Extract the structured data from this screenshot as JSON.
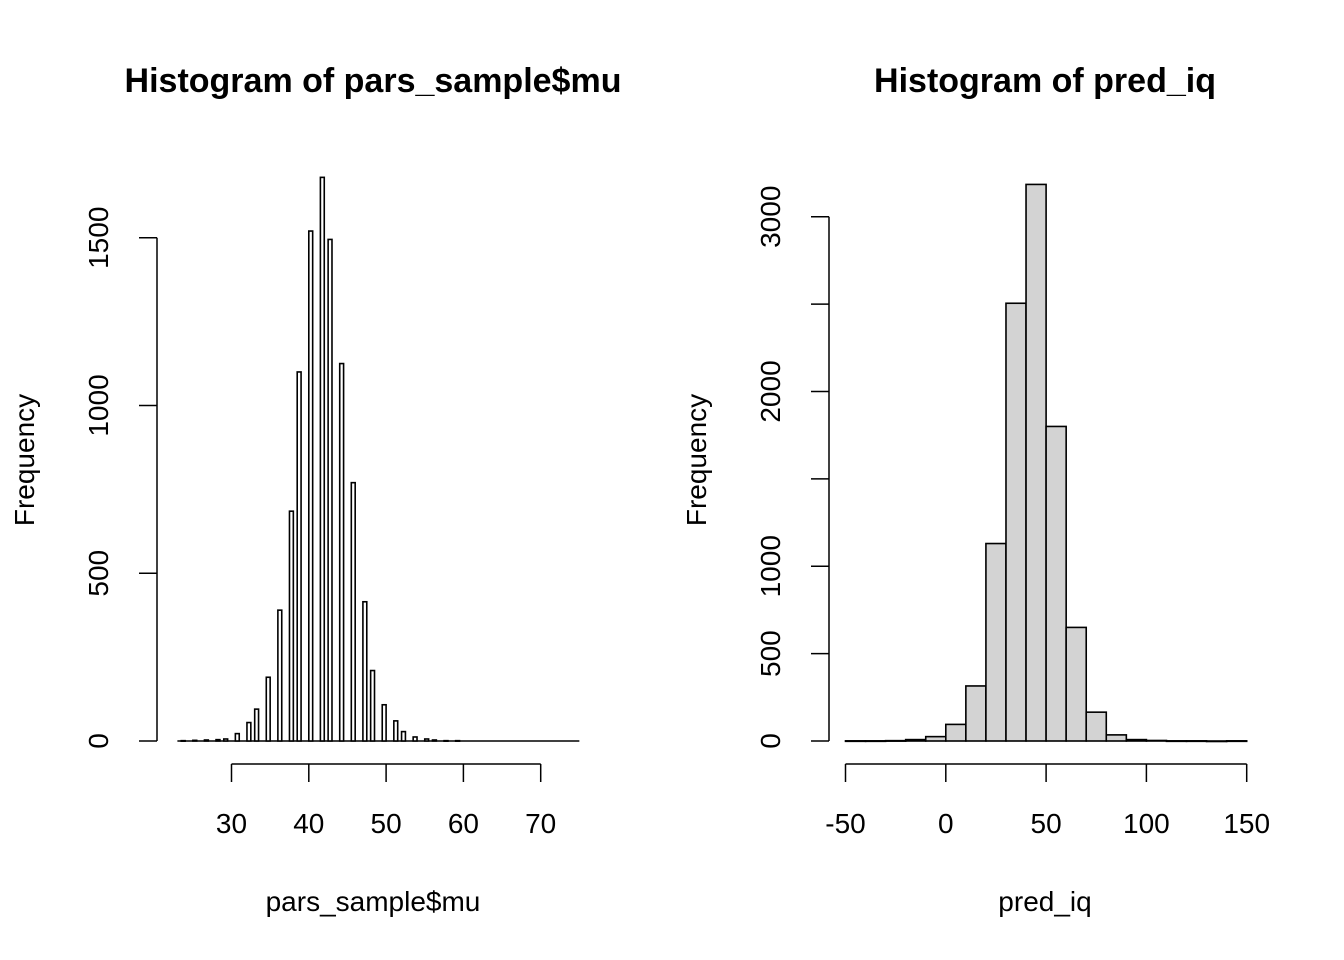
{
  "chart_data": [
    {
      "type": "bar",
      "title": "Histogram of pars_sample$mu",
      "xlabel": "pars_sample$mu",
      "ylabel": "Frequency",
      "xlim": [
        20,
        75
      ],
      "ylim": [
        0,
        1700
      ],
      "x_ticks": [
        30,
        40,
        50,
        60,
        70
      ],
      "y_ticks": [
        0,
        500,
        1000,
        1500
      ],
      "bin_width": 0.5,
      "bins": [
        {
          "x0": 23.5,
          "x1": 24.0,
          "count": 1
        },
        {
          "x0": 25.0,
          "x1": 25.5,
          "count": 2
        },
        {
          "x0": 26.5,
          "x1": 27.0,
          "count": 3
        },
        {
          "x0": 28.0,
          "x1": 28.5,
          "count": 4
        },
        {
          "x0": 29.0,
          "x1": 29.5,
          "count": 6
        },
        {
          "x0": 30.5,
          "x1": 31.0,
          "count": 22
        },
        {
          "x0": 32.0,
          "x1": 32.5,
          "count": 55
        },
        {
          "x0": 33.0,
          "x1": 33.5,
          "count": 95
        },
        {
          "x0": 34.5,
          "x1": 35.0,
          "count": 190
        },
        {
          "x0": 36.0,
          "x1": 36.5,
          "count": 390
        },
        {
          "x0": 37.5,
          "x1": 38.0,
          "count": 685
        },
        {
          "x0": 38.5,
          "x1": 39.0,
          "count": 1100
        },
        {
          "x0": 40.0,
          "x1": 40.5,
          "count": 1520
        },
        {
          "x0": 41.5,
          "x1": 42.0,
          "count": 1680
        },
        {
          "x0": 42.5,
          "x1": 43.0,
          "count": 1495
        },
        {
          "x0": 44.0,
          "x1": 44.5,
          "count": 1125
        },
        {
          "x0": 45.5,
          "x1": 46.0,
          "count": 770
        },
        {
          "x0": 47.0,
          "x1": 47.5,
          "count": 415
        },
        {
          "x0": 48.0,
          "x1": 48.5,
          "count": 210
        },
        {
          "x0": 49.5,
          "x1": 50.0,
          "count": 108
        },
        {
          "x0": 51.0,
          "x1": 51.5,
          "count": 60
        },
        {
          "x0": 52.0,
          "x1": 52.5,
          "count": 28
        },
        {
          "x0": 53.5,
          "x1": 54.0,
          "count": 12
        },
        {
          "x0": 55.0,
          "x1": 55.5,
          "count": 6
        },
        {
          "x0": 56.0,
          "x1": 56.5,
          "count": 3
        },
        {
          "x0": 57.5,
          "x1": 58.0,
          "count": 1
        },
        {
          "x0": 59.0,
          "x1": 59.5,
          "count": 1
        }
      ],
      "baseline_range": [
        23,
        75
      ]
    },
    {
      "type": "bar",
      "title": "Histogram of pred_iq",
      "xlabel": "pred_iq",
      "ylabel": "Frequency",
      "xlim": [
        -50,
        150
      ],
      "ylim": [
        0,
        3300
      ],
      "x_ticks": [
        -50,
        0,
        50,
        100,
        150
      ],
      "y_ticks": [
        0,
        500,
        1000,
        1500,
        2000,
        2500,
        3000
      ],
      "y_tick_labels": [
        "0",
        "500",
        "1000",
        "",
        "2000",
        "",
        "3000"
      ],
      "bin_width": 10,
      "bins": [
        {
          "x0": -50,
          "x1": -40,
          "count": 1
        },
        {
          "x0": -40,
          "x1": -30,
          "count": 1
        },
        {
          "x0": -30,
          "x1": -20,
          "count": 2
        },
        {
          "x0": -20,
          "x1": -10,
          "count": 8
        },
        {
          "x0": -10,
          "x1": 0,
          "count": 25
        },
        {
          "x0": 0,
          "x1": 10,
          "count": 95
        },
        {
          "x0": 10,
          "x1": 20,
          "count": 315
        },
        {
          "x0": 20,
          "x1": 30,
          "count": 1130
        },
        {
          "x0": 30,
          "x1": 40,
          "count": 2505
        },
        {
          "x0": 40,
          "x1": 50,
          "count": 3185
        },
        {
          "x0": 50,
          "x1": 60,
          "count": 1800
        },
        {
          "x0": 60,
          "x1": 70,
          "count": 650
        },
        {
          "x0": 70,
          "x1": 80,
          "count": 165
        },
        {
          "x0": 80,
          "x1": 90,
          "count": 35
        },
        {
          "x0": 90,
          "x1": 100,
          "count": 8
        },
        {
          "x0": 100,
          "x1": 110,
          "count": 3
        },
        {
          "x0": 110,
          "x1": 120,
          "count": 1
        },
        {
          "x0": 120,
          "x1": 130,
          "count": 1
        },
        {
          "x0": 130,
          "x1": 140,
          "count": 0
        },
        {
          "x0": 140,
          "x1": 150,
          "count": 1
        }
      ]
    }
  ]
}
